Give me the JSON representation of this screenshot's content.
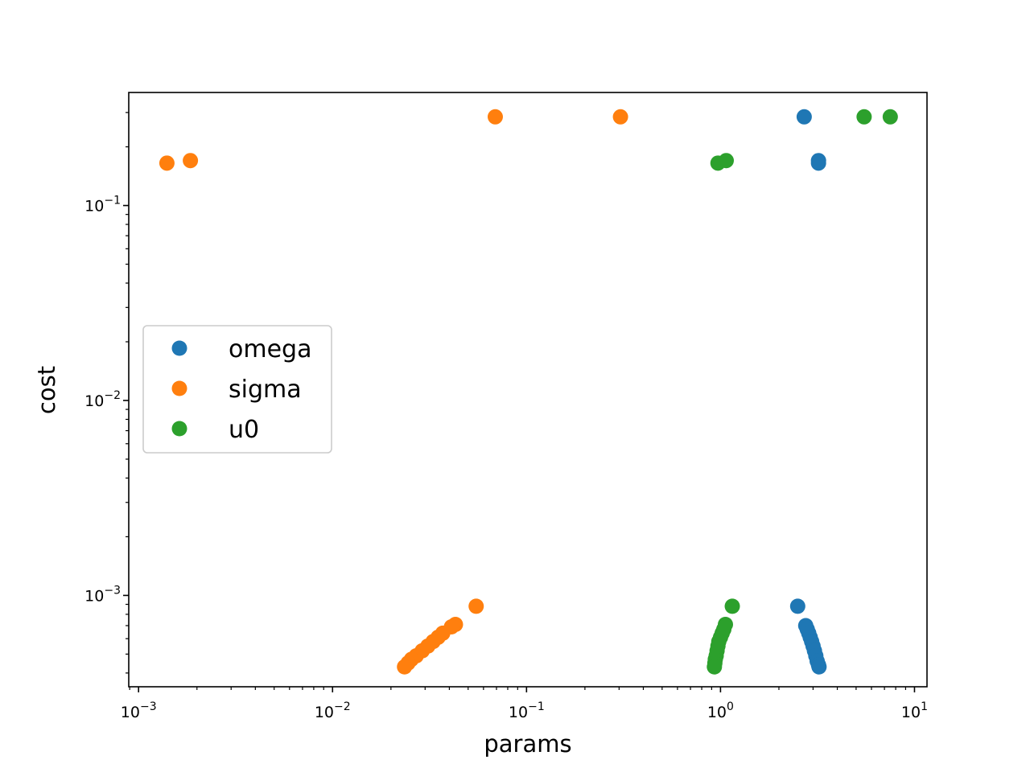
{
  "chart_data": {
    "type": "scatter",
    "xlabel": "params",
    "ylabel": "cost",
    "xscale": "log",
    "yscale": "log",
    "xlim": [
      0.00089,
      11.6
    ],
    "ylim": [
      0.00034,
      0.38
    ],
    "xticks": [
      {
        "value": 0.001,
        "base": "10",
        "exp": "−3"
      },
      {
        "value": 0.01,
        "base": "10",
        "exp": "−2"
      },
      {
        "value": 0.1,
        "base": "10",
        "exp": "−1"
      },
      {
        "value": 1,
        "base": "10",
        "exp": "0"
      },
      {
        "value": 10,
        "base": "10",
        "exp": "1"
      }
    ],
    "yticks": [
      {
        "value": 0.001,
        "base": "10",
        "exp": "−3"
      },
      {
        "value": 0.01,
        "base": "10",
        "exp": "−2"
      },
      {
        "value": 0.1,
        "base": "10",
        "exp": "−1"
      }
    ],
    "grid": false,
    "legend_position": "center-left",
    "series": [
      {
        "name": "omega",
        "color": "#1f77b4",
        "points": [
          [
            2.7,
            0.285
          ],
          [
            3.2,
            0.17
          ],
          [
            3.2,
            0.165
          ],
          [
            2.5,
            0.00088
          ],
          [
            2.75,
            0.0007
          ],
          [
            2.8,
            0.00067
          ],
          [
            2.85,
            0.00064
          ],
          [
            2.9,
            0.00061
          ],
          [
            2.95,
            0.00058
          ],
          [
            3.0,
            0.00055
          ],
          [
            3.05,
            0.00052
          ],
          [
            3.1,
            0.00049
          ],
          [
            3.15,
            0.00046
          ],
          [
            3.2,
            0.00044
          ],
          [
            3.22,
            0.00043
          ]
        ]
      },
      {
        "name": "sigma",
        "color": "#ff7f0e",
        "points": [
          [
            0.0014,
            0.165
          ],
          [
            0.00185,
            0.17
          ],
          [
            0.069,
            0.285
          ],
          [
            0.305,
            0.285
          ],
          [
            0.055,
            0.00088
          ],
          [
            0.043,
            0.00071
          ],
          [
            0.041,
            0.00069
          ],
          [
            0.037,
            0.00064
          ],
          [
            0.035,
            0.00061
          ],
          [
            0.033,
            0.00058
          ],
          [
            0.031,
            0.00055
          ],
          [
            0.029,
            0.00052
          ],
          [
            0.027,
            0.00049
          ],
          [
            0.0255,
            0.00047
          ],
          [
            0.0245,
            0.00045
          ],
          [
            0.0235,
            0.00043
          ]
        ]
      },
      {
        "name": "u0",
        "color": "#2ca02c",
        "points": [
          [
            0.97,
            0.165
          ],
          [
            1.07,
            0.17
          ],
          [
            5.5,
            0.285
          ],
          [
            7.5,
            0.285
          ],
          [
            1.15,
            0.00088
          ],
          [
            1.06,
            0.00071
          ],
          [
            1.04,
            0.00067
          ],
          [
            1.02,
            0.00064
          ],
          [
            1.0,
            0.00061
          ],
          [
            0.98,
            0.00058
          ],
          [
            0.97,
            0.00055
          ],
          [
            0.96,
            0.00052
          ],
          [
            0.95,
            0.00049
          ],
          [
            0.94,
            0.00047
          ],
          [
            0.935,
            0.00045
          ],
          [
            0.93,
            0.00043
          ]
        ]
      }
    ]
  }
}
